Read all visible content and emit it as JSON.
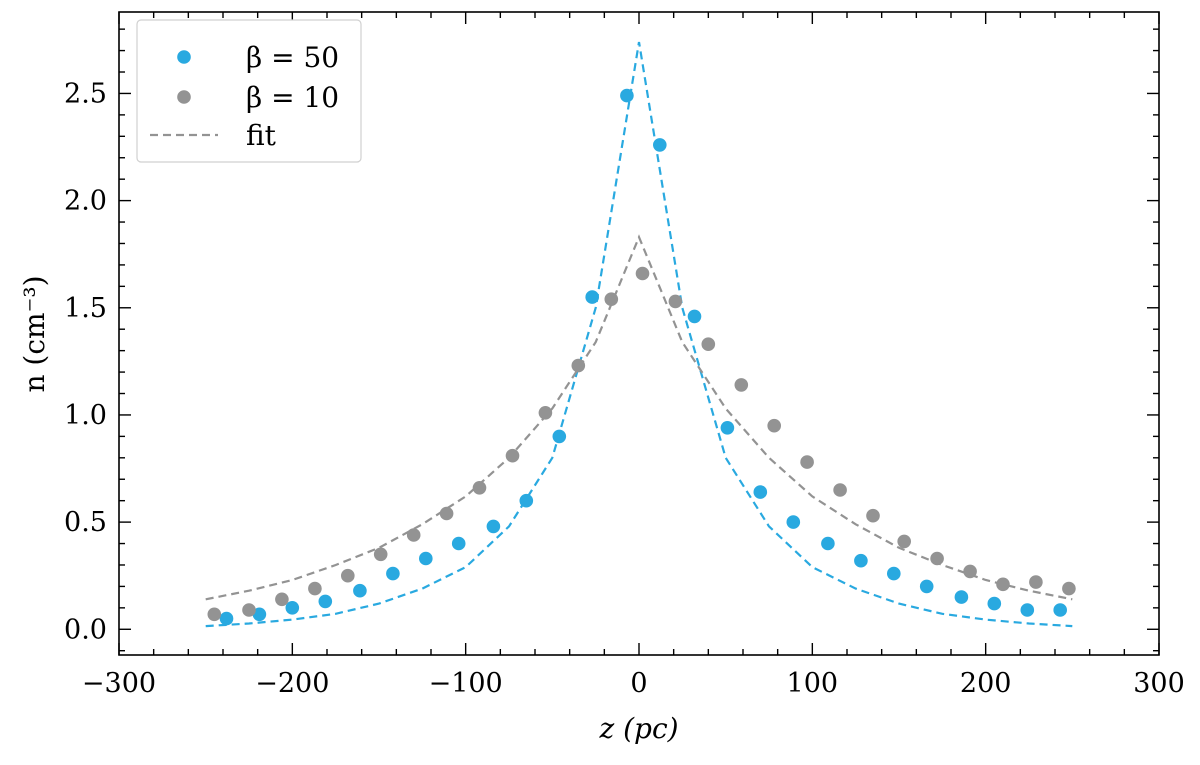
{
  "chart_data": {
    "type": "scatter",
    "title": "",
    "xlabel": "z (pc)",
    "ylabel": "n (cm⁻³)",
    "xlim": [
      -300,
      300
    ],
    "ylim": [
      -0.12,
      2.88
    ],
    "xticks": [
      -300,
      -200,
      -100,
      0,
      100,
      200,
      300
    ],
    "xtick_labels": [
      "−300",
      "−200",
      "−100",
      "0",
      "100",
      "200",
      "300"
    ],
    "yticks": [
      0.0,
      0.5,
      1.0,
      1.5,
      2.0,
      2.5
    ],
    "ytick_labels": [
      "0.0",
      "0.5",
      "1.0",
      "1.5",
      "2.0",
      "2.5"
    ],
    "grid": false,
    "legend_position": "top-left",
    "series": [
      {
        "name": "β = 50",
        "kind": "scatter",
        "color": "#29a9e0",
        "x": [
          -238,
          -219,
          -200,
          -181,
          -161,
          -142,
          -123,
          -104,
          -84,
          -65,
          -46,
          -27,
          -7,
          12,
          32,
          51,
          70,
          89,
          109,
          128,
          147,
          166,
          186,
          205,
          224,
          243
        ],
        "y": [
          0.05,
          0.07,
          0.1,
          0.13,
          0.18,
          0.26,
          0.33,
          0.4,
          0.48,
          0.6,
          0.9,
          1.55,
          2.49,
          2.26,
          1.46,
          0.94,
          0.64,
          0.5,
          0.4,
          0.32,
          0.26,
          0.2,
          0.15,
          0.12,
          0.09,
          0.09
        ]
      },
      {
        "name": "β = 10",
        "kind": "scatter",
        "color": "#939393",
        "x": [
          -245,
          -225,
          -206,
          -187,
          -168,
          -149,
          -130,
          -111,
          -92,
          -73,
          -54,
          -35,
          -16,
          2,
          21,
          40,
          59,
          78,
          97,
          116,
          135,
          153,
          172,
          191,
          210,
          229,
          248
        ],
        "y": [
          0.07,
          0.09,
          0.14,
          0.19,
          0.25,
          0.35,
          0.44,
          0.54,
          0.66,
          0.81,
          1.01,
          1.23,
          1.54,
          1.66,
          1.53,
          1.33,
          1.14,
          0.95,
          0.78,
          0.65,
          0.53,
          0.41,
          0.33,
          0.27,
          0.21,
          0.22,
          0.19
        ]
      },
      {
        "name": "fit",
        "kind": "line",
        "dashed": true,
        "color": "#29a9e0",
        "x": [
          -250,
          -225,
          -200,
          -175,
          -150,
          -125,
          -100,
          -75,
          -50,
          -25,
          0,
          25,
          50,
          75,
          100,
          125,
          150,
          175,
          200,
          225,
          250
        ],
        "y": [
          0.015,
          0.027,
          0.045,
          0.072,
          0.12,
          0.19,
          0.29,
          0.48,
          0.8,
          1.5,
          2.74,
          1.5,
          0.8,
          0.48,
          0.29,
          0.19,
          0.12,
          0.072,
          0.045,
          0.027,
          0.015
        ]
      },
      {
        "name": "fit",
        "kind": "line",
        "dashed": true,
        "color": "#939393",
        "x": [
          -250,
          -225,
          -200,
          -175,
          -150,
          -125,
          -100,
          -75,
          -50,
          -25,
          0,
          25,
          50,
          75,
          100,
          125,
          150,
          175,
          200,
          225,
          250
        ],
        "y": [
          0.14,
          0.18,
          0.23,
          0.3,
          0.38,
          0.49,
          0.62,
          0.8,
          1.03,
          1.34,
          1.83,
          1.34,
          1.03,
          0.8,
          0.62,
          0.49,
          0.38,
          0.3,
          0.23,
          0.18,
          0.14
        ]
      }
    ],
    "legend": [
      {
        "label": "β = 50",
        "marker": "dot",
        "color": "#29a9e0"
      },
      {
        "label": "β = 10",
        "marker": "dot",
        "color": "#939393"
      },
      {
        "label": "fit",
        "marker": "dashed-line",
        "color": "#939393"
      }
    ]
  }
}
